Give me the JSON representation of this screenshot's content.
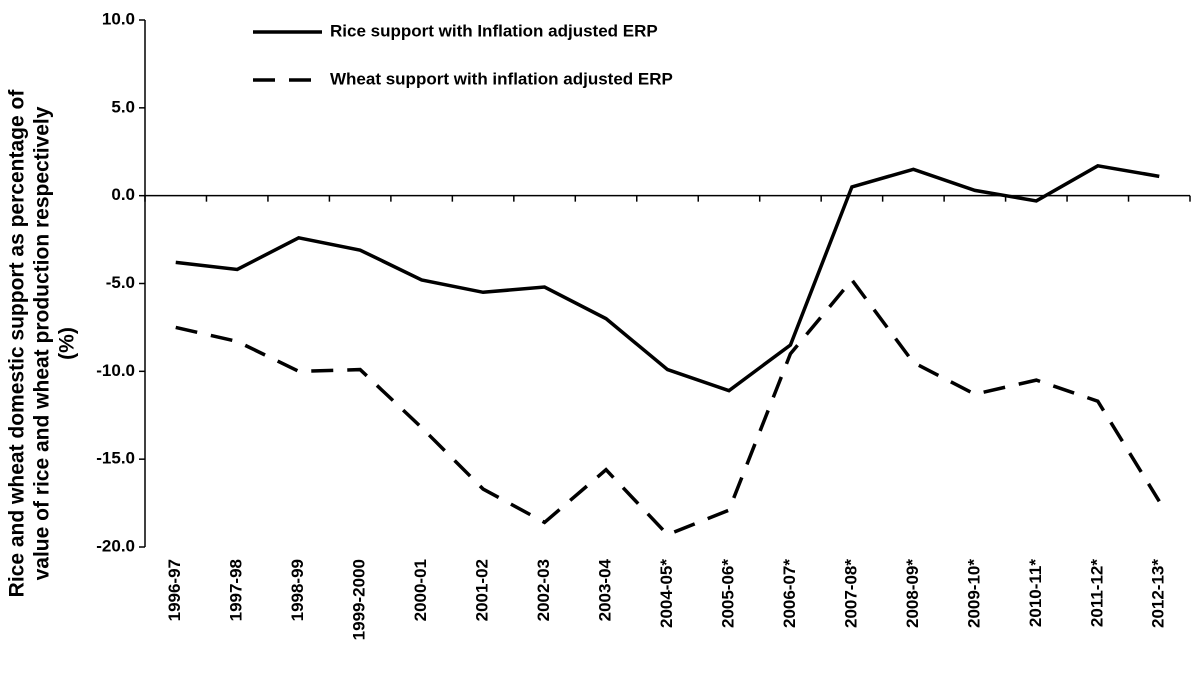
{
  "chart_data": {
    "type": "line",
    "y_label": [
      "Rice and wheat domestic support as percentage of",
      "value of rice and wheat production respectively",
      "(%)"
    ],
    "categories": [
      "1996-97",
      "1997-98",
      "1998-99",
      "1999-2000",
      "2000-01",
      "2001-02",
      "2002-03",
      "2003-04",
      "2004-05*",
      "2005-06*",
      "2006-07*",
      "2007-08*",
      "2008-09*",
      "2009-10*",
      "2010-11*",
      "2011-12*",
      "2012-13*"
    ],
    "series": [
      {
        "name": "Rice support with Inflation adjusted ERP",
        "color": "#000000",
        "dash": "solid",
        "values": [
          -3.8,
          -4.2,
          -2.4,
          -3.1,
          -4.8,
          -5.5,
          -5.2,
          -7.0,
          -9.9,
          -11.1,
          -8.5,
          0.5,
          1.5,
          0.3,
          -0.3,
          1.7,
          1.1
        ]
      },
      {
        "name": "Wheat support with inflation adjusted ERP",
        "color": "#000000",
        "dash": "dashed",
        "values": [
          -7.5,
          -8.3,
          -10.0,
          -9.9,
          -13.2,
          -16.7,
          -18.6,
          -15.6,
          -19.3,
          -17.9,
          -9.0,
          -4.8,
          -9.5,
          -11.3,
          -10.5,
          -11.7,
          -17.4
        ]
      }
    ],
    "ylim": [
      -20,
      10
    ],
    "yticks": [
      {
        "value": -20,
        "label": "-20.0"
      },
      {
        "value": -15,
        "label": "-15.0"
      },
      {
        "value": -10,
        "label": "-10.0"
      },
      {
        "value": -5,
        "label": "-5.0"
      },
      {
        "value": 0,
        "label": "0.0"
      },
      {
        "value": 5,
        "label": "5.0"
      },
      {
        "value": 10,
        "label": "10.0"
      }
    ],
    "legend": "top"
  }
}
